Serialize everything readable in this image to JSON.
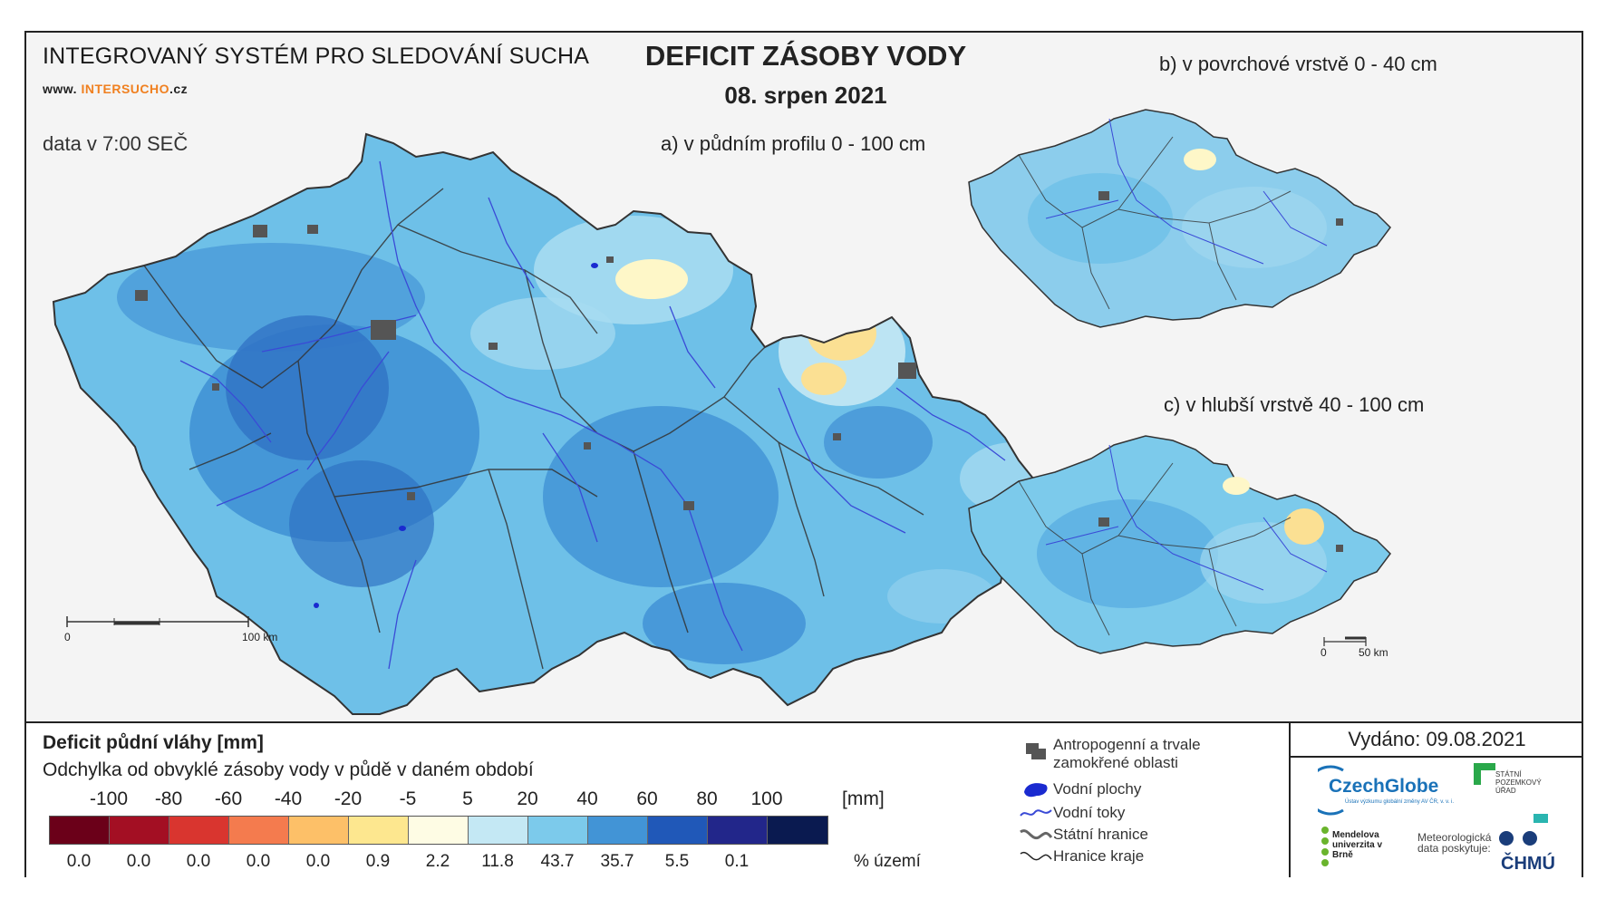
{
  "header": {
    "system_title": "INTEGROVANÝ SYSTÉM PRO SLEDOVÁNÍ SUCHA",
    "website_prefix": "www. ",
    "website_main": "INTERSUCHO",
    "website_suffix": ".cz",
    "data_time": "data v 7:00 SEČ",
    "main_title": "DEFICIT ZÁSOBY VODY",
    "date": "08. srpen 2021"
  },
  "maps": {
    "a_title": "a) v půdním profilu 0 - 100 cm",
    "b_title": "b) v povrchové vrstvě 0 - 40 cm",
    "c_title": "c) v hlubší vrstvě 40 - 100 cm",
    "scale_main_start": "0",
    "scale_main_end": "100 km",
    "scale_small_start": "0",
    "scale_small_end": "50 km"
  },
  "legend": {
    "title": "Deficit půdní vláhy  [mm]",
    "subtitle": "Odchylka od obvyklé zásoby vody v půdě v daném období",
    "unit_mm": "[mm]",
    "unit_pct": "% území",
    "thresholds": [
      "-100",
      "-80",
      "-60",
      "-40",
      "-20",
      "-5",
      "5",
      "20",
      "40",
      "60",
      "80",
      "100"
    ],
    "classes": [
      {
        "color": "#6b0019",
        "percent": "0.0"
      },
      {
        "color": "#a30f23",
        "percent": "0.0"
      },
      {
        "color": "#d9352f",
        "percent": "0.0"
      },
      {
        "color": "#f47b4e",
        "percent": "0.0"
      },
      {
        "color": "#fdc068",
        "percent": "0.0"
      },
      {
        "color": "#fde78f",
        "percent": "0.9"
      },
      {
        "color": "#fefce4",
        "percent": "2.2"
      },
      {
        "color": "#c4e8f4",
        "percent": "11.8"
      },
      {
        "color": "#7ccaeb",
        "percent": "43.7"
      },
      {
        "color": "#4294d6",
        "percent": "35.7"
      },
      {
        "color": "#2058b8",
        "percent": "5.5"
      },
      {
        "color": "#22268a",
        "percent": "0.1"
      },
      {
        "color": "#0a1a50",
        "percent": ""
      }
    ]
  },
  "key": {
    "anthropogenic": "Antropogenní a trvale zamokřené oblasti",
    "water_bodies": "Vodní plochy",
    "rivers": "Vodní toky",
    "state_border": "Státní hranice",
    "region_border": "Hranice kraje"
  },
  "footer": {
    "issued": "Vydáno: 09.08.2021",
    "czechglobe": "CzechGlobe",
    "czechglobe_sub": "Ústav výzkumu globální změny AV ČR, v. v. i.",
    "spu": "STÁTNÍ POZEMKOVÝ ÚŘAD",
    "mendel": "Mendelova univerzita v Brně",
    "meteo": "Meteorologická data poskytuje:",
    "chmu": "ČHMÚ"
  },
  "colors": {
    "land_light": "#9fd7ef",
    "land_mid": "#6ec0e8",
    "land_dark": "#3e8fd4",
    "land_deep": "#2560b8",
    "dry_light": "#fef7c8",
    "dry_mid": "#fbe093",
    "river": "#3a4ad6",
    "urban": "#555555",
    "border": "#333333"
  }
}
